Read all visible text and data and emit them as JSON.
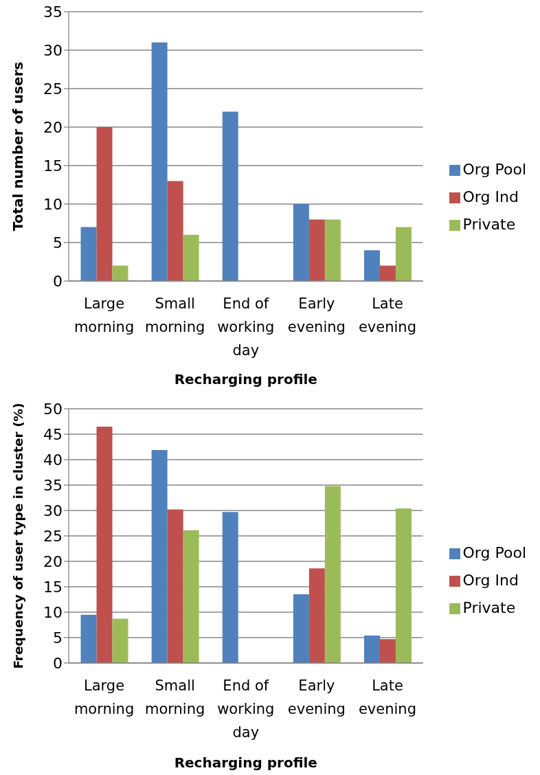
{
  "chart_data": [
    {
      "type": "bar",
      "xlabel": "Recharging profile",
      "ylabel": "Total number of users",
      "categories": [
        "Large morning",
        "Small morning",
        "End of working day",
        "Early evening",
        "Late evening"
      ],
      "series": [
        {
          "name": "Org Pool",
          "color": "#4f81bd",
          "values": [
            7,
            31,
            22,
            10,
            4
          ]
        },
        {
          "name": "Org Ind",
          "color": "#c0504d",
          "values": [
            20,
            13,
            0,
            8,
            2
          ]
        },
        {
          "name": "Private",
          "color": "#9bbb59",
          "values": [
            2,
            6,
            0,
            8,
            7
          ]
        }
      ],
      "ylim": [
        0,
        35
      ],
      "yticks": [
        0,
        5,
        10,
        15,
        20,
        25,
        30,
        35
      ],
      "grid": "y",
      "legend": "right"
    },
    {
      "type": "bar",
      "xlabel": "Recharging profile",
      "ylabel": "Frequency of user type in cluster (%)",
      "categories": [
        "Large morning",
        "Small morning",
        "End of working day",
        "Early evening",
        "Late evening"
      ],
      "series": [
        {
          "name": "Org Pool",
          "color": "#4f81bd",
          "values": [
            9.5,
            41.9,
            29.7,
            13.5,
            5.4
          ]
        },
        {
          "name": "Org Ind",
          "color": "#c0504d",
          "values": [
            46.5,
            30.2,
            0,
            18.6,
            4.7
          ]
        },
        {
          "name": "Private",
          "color": "#9bbb59",
          "values": [
            8.7,
            26.1,
            0,
            34.8,
            30.4
          ]
        }
      ],
      "ylim": [
        0,
        50
      ],
      "yticks": [
        0,
        5,
        10,
        15,
        20,
        25,
        30,
        35,
        40,
        45,
        50
      ],
      "grid": "y",
      "legend": "right"
    }
  ]
}
